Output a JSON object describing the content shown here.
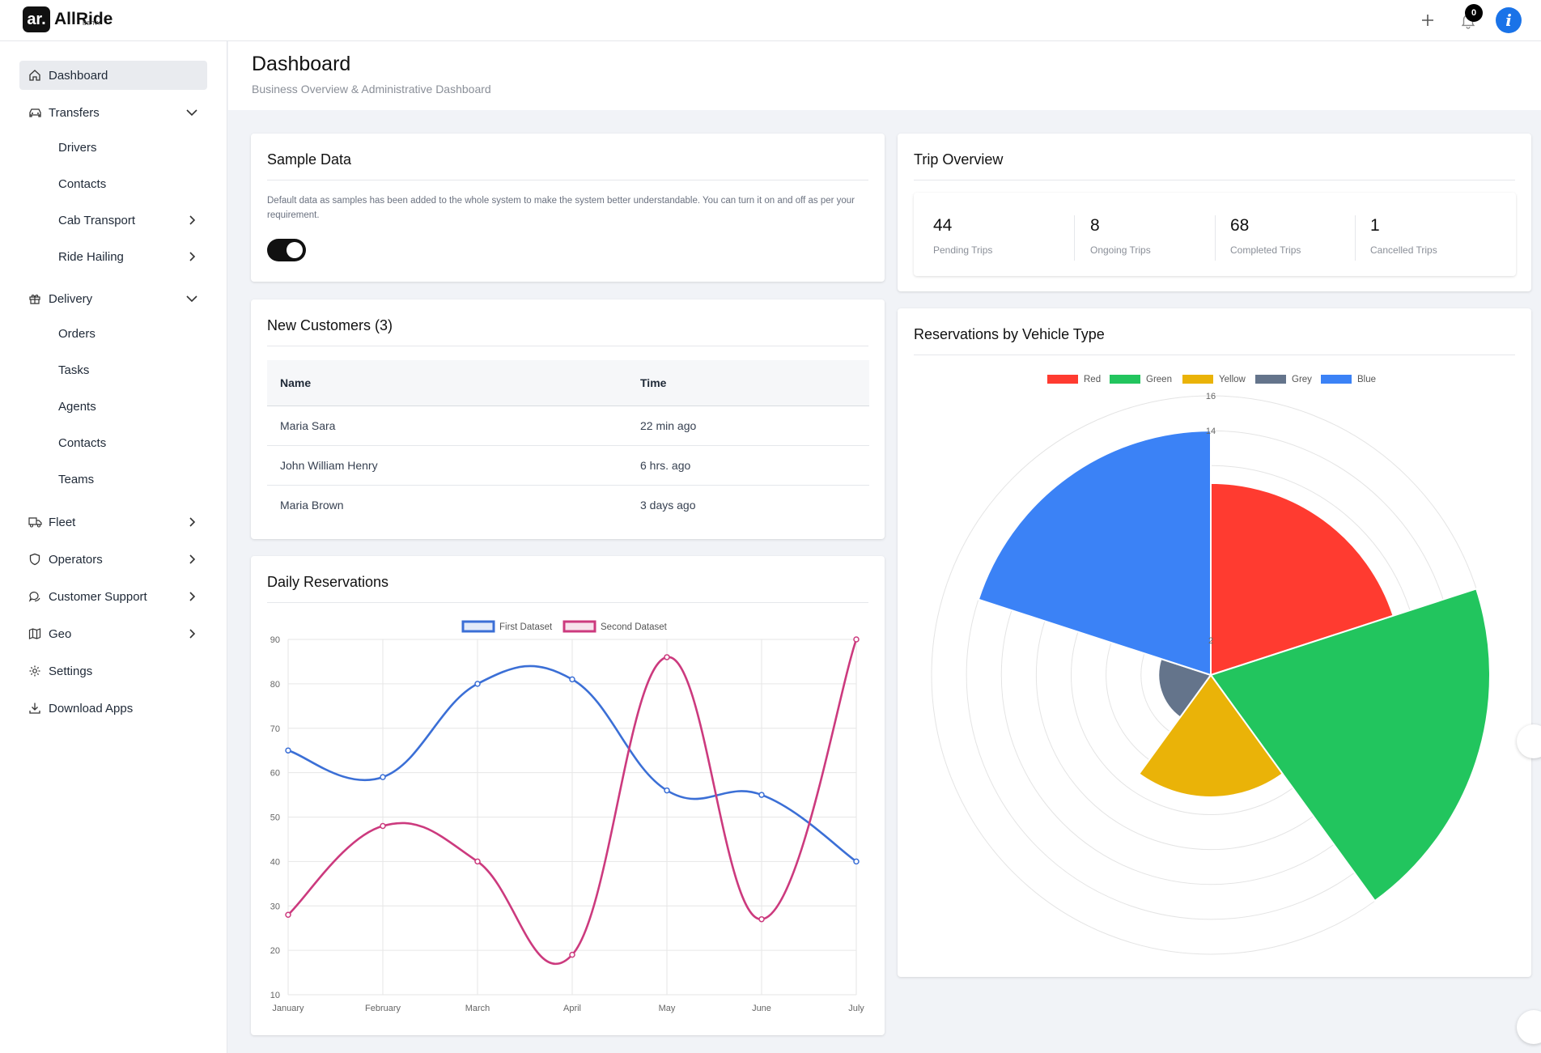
{
  "app": {
    "logo_mark": "ar.",
    "name": "AllRide",
    "badge": "BETA"
  },
  "topbar": {
    "notifications_count": "0",
    "info_label": "i"
  },
  "sidebar": {
    "dashboard": "Dashboard",
    "transfers": "Transfers",
    "transfers_items": [
      "Drivers",
      "Contacts",
      "Cab Transport",
      "Ride Hailing"
    ],
    "delivery": "Delivery",
    "delivery_items": [
      "Orders",
      "Tasks",
      "Agents",
      "Contacts",
      "Teams"
    ],
    "fleet": "Fleet",
    "operators": "Operators",
    "customer_support": "Customer Support",
    "geo": "Geo",
    "settings": "Settings",
    "download_apps": "Download Apps"
  },
  "header": {
    "title": "Dashboard",
    "subtitle": "Business Overview & Administrative Dashboard"
  },
  "sample_data": {
    "title": "Sample Data",
    "description": "Default data as samples has been added to the whole system to make the system better understandable. You can turn it on and off as per your requirement.",
    "enabled": true
  },
  "trip_overview": {
    "title": "Trip Overview",
    "stats": [
      {
        "value": "44",
        "label": "Pending Trips"
      },
      {
        "value": "8",
        "label": "Ongoing Trips"
      },
      {
        "value": "68",
        "label": "Completed Trips"
      },
      {
        "value": "1",
        "label": "Cancelled Trips"
      }
    ]
  },
  "new_customers": {
    "title": "New Customers (3)",
    "columns": [
      "Name",
      "Time"
    ],
    "rows": [
      [
        "Maria Sara",
        "22 min ago"
      ],
      [
        "John William Henry",
        "6 hrs. ago"
      ],
      [
        "Maria Brown",
        "3 days ago"
      ]
    ]
  },
  "daily_reservations": {
    "title": "Daily Reservations"
  },
  "vehicle_reservations": {
    "title": "Reservations by Vehicle Type"
  },
  "chart_data": [
    {
      "type": "line",
      "categories": [
        "January",
        "February",
        "March",
        "April",
        "May",
        "June",
        "July"
      ],
      "series": [
        {
          "name": "First Dataset",
          "values": [
            65,
            59,
            80,
            81,
            56,
            55,
            40
          ],
          "color": "#3b6fd6"
        },
        {
          "name": "Second Dataset",
          "values": [
            28,
            48,
            40,
            19,
            86,
            27,
            90
          ],
          "color": "#cc3a7e"
        }
      ],
      "ylim": [
        10,
        90
      ],
      "yticks": [
        "10",
        "20",
        "30",
        "40",
        "50",
        "60",
        "70",
        "80",
        "90"
      ],
      "legend": "top",
      "grid": true
    },
    {
      "type": "polarArea",
      "categories": [
        "Red",
        "Green",
        "Yellow",
        "Grey",
        "Blue"
      ],
      "values": [
        11,
        16,
        7,
        3,
        14
      ],
      "colors": [
        "#ff3b30",
        "#22c55e",
        "#eab308",
        "#64748b",
        "#3b82f6"
      ],
      "rmax": 16,
      "ticks": [
        "16",
        "14",
        "2"
      ],
      "legend": "top"
    }
  ]
}
